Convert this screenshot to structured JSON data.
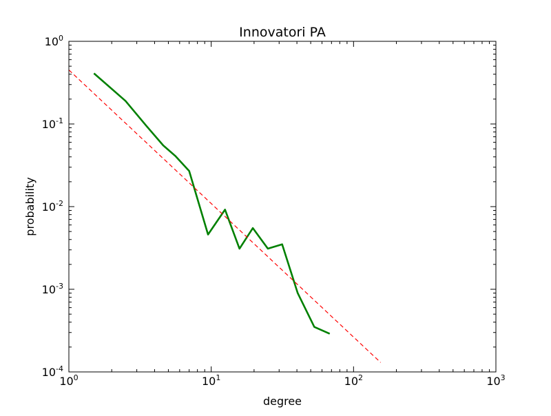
{
  "chart_data": {
    "type": "line",
    "title": "Innovatori PA",
    "xlabel": "degree",
    "ylabel": "probability",
    "xscale": "log",
    "yscale": "log",
    "xlim": [
      1,
      1000
    ],
    "ylim": [
      0.0001,
      1
    ],
    "grid": false,
    "x_ticks": [
      {
        "value": 1,
        "base": "10",
        "exp": "0"
      },
      {
        "value": 10,
        "base": "10",
        "exp": "1"
      },
      {
        "value": 100,
        "base": "10",
        "exp": "2"
      },
      {
        "value": 1000,
        "base": "10",
        "exp": "3"
      }
    ],
    "y_ticks": [
      {
        "value": 0.0001,
        "base": "10",
        "exp": "-4"
      },
      {
        "value": 0.001,
        "base": "10",
        "exp": "-3"
      },
      {
        "value": 0.01,
        "base": "10",
        "exp": "-2"
      },
      {
        "value": 0.1,
        "base": "10",
        "exp": "-1"
      },
      {
        "value": 1,
        "base": "10",
        "exp": "0"
      }
    ],
    "series": [
      {
        "style": "solid",
        "color": "#008000",
        "points": [
          [
            1.5,
            0.41
          ],
          [
            2.5,
            0.19
          ],
          [
            3.5,
            0.095
          ],
          [
            4.6,
            0.055
          ],
          [
            5.6,
            0.041
          ],
          [
            7.0,
            0.027
          ],
          [
            9.5,
            0.0046
          ],
          [
            12.5,
            0.0092
          ],
          [
            15.8,
            0.0031
          ],
          [
            19.6,
            0.0055
          ],
          [
            25.0,
            0.0031
          ],
          [
            31.5,
            0.0035
          ],
          [
            40.5,
            0.0009
          ],
          [
            53.0,
            0.00035
          ],
          [
            68.0,
            0.00029
          ]
        ]
      },
      {
        "style": "dashed",
        "color": "#ff0000",
        "points": [
          [
            1.0,
            0.45
          ],
          [
            155.0,
            0.00013
          ]
        ]
      }
    ]
  }
}
